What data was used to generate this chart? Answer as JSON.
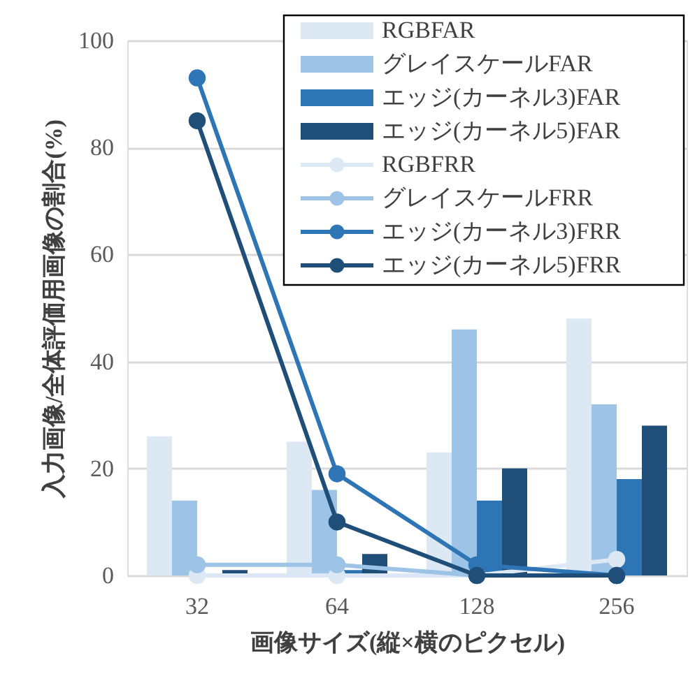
{
  "chart_data": {
    "type": "bar",
    "xlabel": "画像サイズ(縦×横のピクセル)",
    "ylabel": "入力画像/全体評価用画像の割合(%)",
    "categories": [
      "32",
      "64",
      "128",
      "256"
    ],
    "series": [
      {
        "name": "RGBFAR",
        "type": "bar",
        "color": "#dde8f5",
        "values": [
          26,
          25,
          23,
          48
        ]
      },
      {
        "name": "グレイスケールFAR",
        "type": "bar",
        "color": "#9dc3e6",
        "values": [
          14,
          16,
          46,
          32
        ]
      },
      {
        "name": "エッジ(カーネル3)FAR",
        "type": "bar",
        "color": "#2e75b6",
        "values": [
          0,
          1,
          14,
          18
        ]
      },
      {
        "name": "エッジ(カーネル5)FAR",
        "type": "bar",
        "color": "#1f4e79",
        "values": [
          1,
          4,
          20,
          28
        ]
      },
      {
        "name": "RGBFRR",
        "type": "line",
        "color": "#dde8f5",
        "values": [
          0,
          0,
          0,
          3
        ]
      },
      {
        "name": "グレイスケールFRR",
        "type": "line",
        "color": "#9dc3e6",
        "values": [
          2,
          2,
          0,
          0
        ]
      },
      {
        "name": "エッジ(カーネル3)FRR",
        "type": "line",
        "color": "#2e75b6",
        "values": [
          93,
          19,
          2,
          0
        ]
      },
      {
        "name": "エッジ(カーネル5)FRR",
        "type": "line",
        "color": "#1f4e79",
        "values": [
          85,
          10,
          0,
          0
        ]
      }
    ],
    "ylim": [
      0,
      100
    ],
    "yticks": [
      0,
      20,
      40,
      60,
      80,
      100
    ],
    "grid": "y",
    "legend": "top right",
    "marker": "circle",
    "line_style": "solid"
  }
}
